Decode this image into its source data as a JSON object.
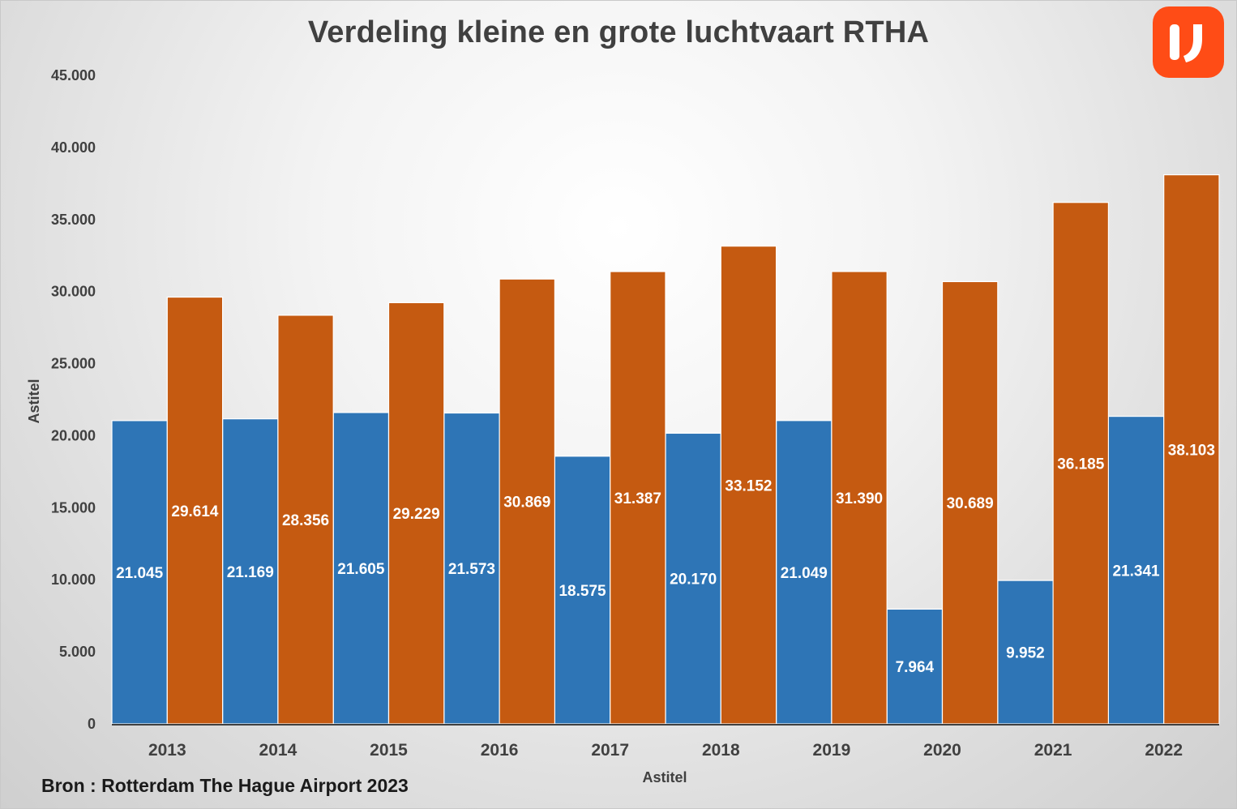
{
  "logo": {
    "icon": "ij-logo-icon",
    "color": "#ff4c16",
    "text": "IJ"
  },
  "source": "Bron : Rotterdam The Hague Airport 2023",
  "chart_data": {
    "type": "bar",
    "title": "Verdeling kleine en grote luchtvaart RTHA",
    "xlabel": "Astitel",
    "ylabel": "Astitel",
    "ylim": [
      0,
      45000
    ],
    "yticks": [
      0,
      5000,
      10000,
      15000,
      20000,
      25000,
      30000,
      35000,
      40000,
      45000
    ],
    "ytick_labels": [
      "0",
      "5.000",
      "10.000",
      "15.000",
      "20.000",
      "25.000",
      "30.000",
      "35.000",
      "40.000",
      "45.000"
    ],
    "grid": false,
    "legend": "none",
    "categories": [
      "2013",
      "2014",
      "2015",
      "2016",
      "2017",
      "2018",
      "2019",
      "2020",
      "2021",
      "2022"
    ],
    "series": [
      {
        "color": "#2e75b6",
        "values": [
          21045,
          21169,
          21605,
          21573,
          18575,
          20170,
          21049,
          7964,
          9952,
          21341
        ],
        "labels": [
          "21.045",
          "21.169",
          "21.605",
          "21.573",
          "18.575",
          "20.170",
          "21.049",
          "7.964",
          "9.952",
          "21.341"
        ]
      },
      {
        "color": "#c55a11",
        "values": [
          29614,
          28356,
          29229,
          30869,
          31387,
          33152,
          31390,
          30689,
          36185,
          38103
        ],
        "labels": [
          "29.614",
          "28.356",
          "29.229",
          "30.869",
          "31.387",
          "33.152",
          "31.390",
          "30.689",
          "36.185",
          "38.103"
        ]
      }
    ]
  }
}
